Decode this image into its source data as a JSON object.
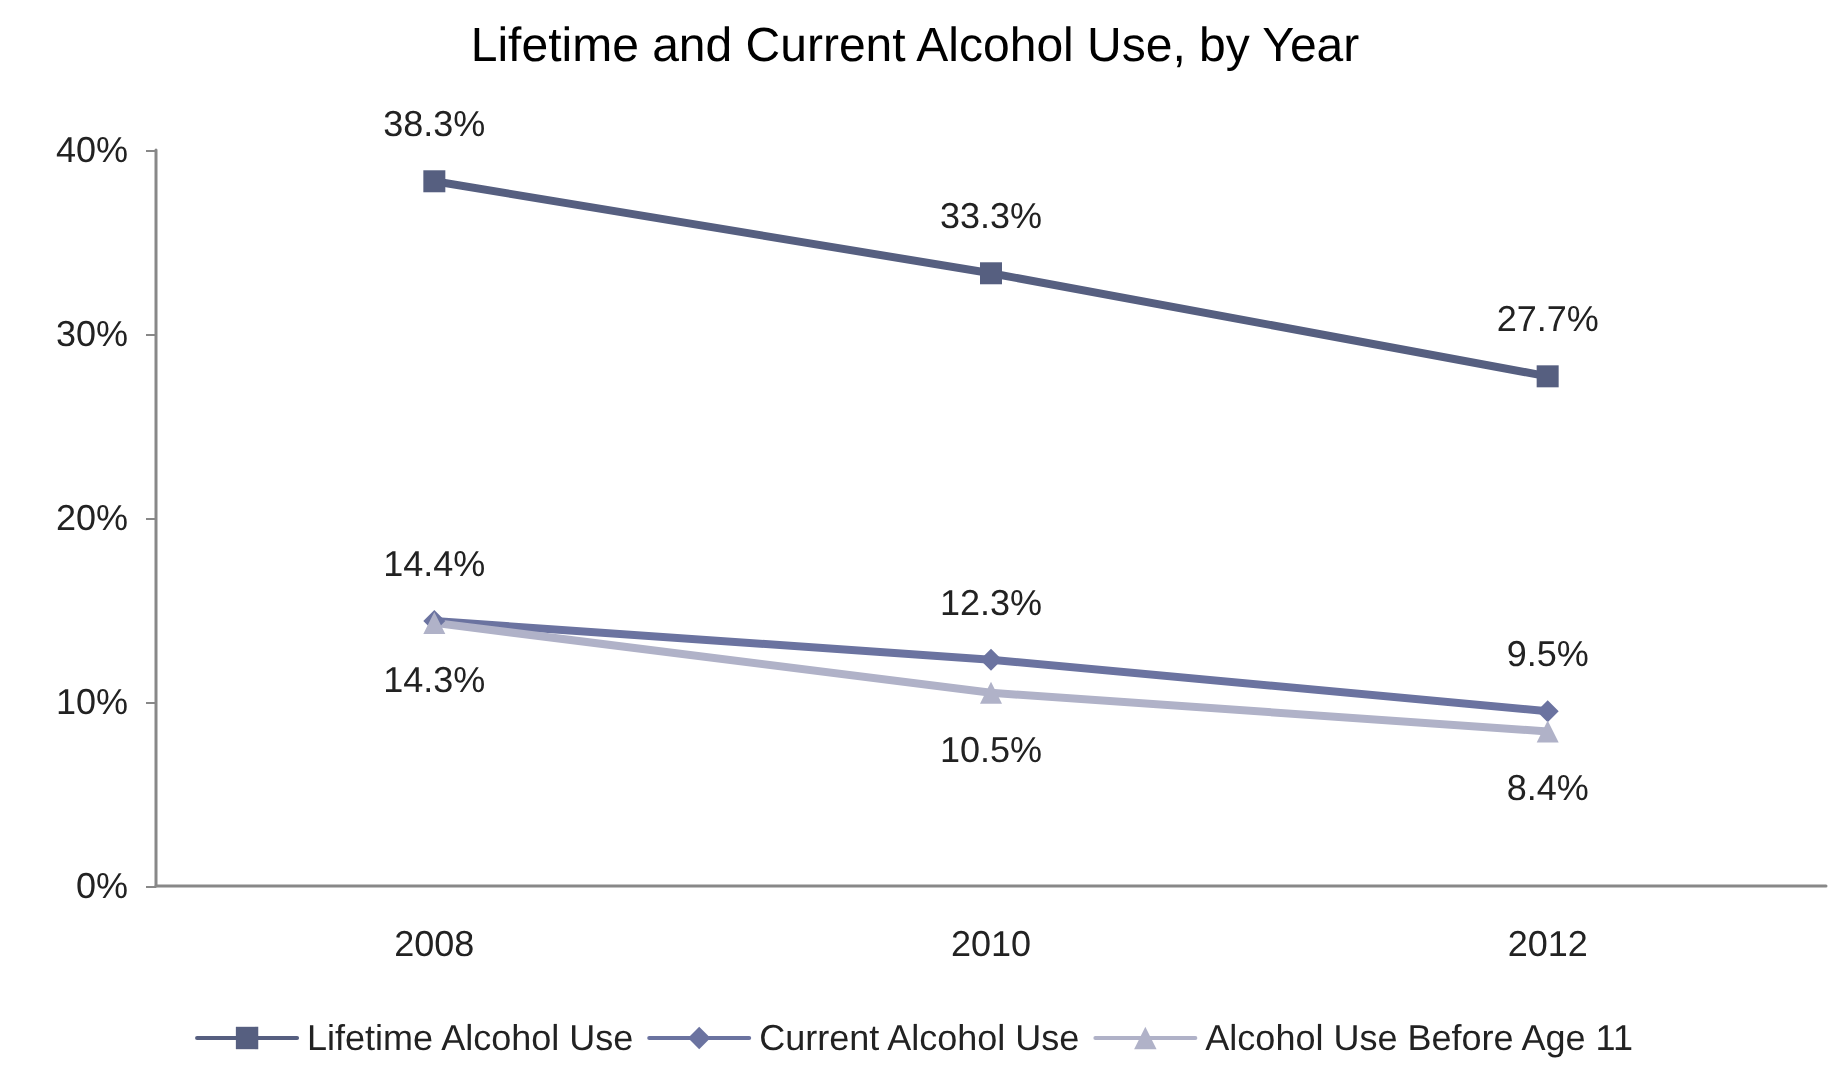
{
  "chart_data": {
    "type": "line",
    "title": "Lifetime and Current Alcohol Use, by Year",
    "categories": [
      "2008",
      "2010",
      "2012"
    ],
    "series": [
      {
        "name": "Lifetime Alcohol Use",
        "color": "#565f80",
        "values": [
          38.3,
          33.3,
          27.7
        ],
        "value_labels": [
          "38.3%",
          "33.3%",
          "27.7%"
        ],
        "marker": "square"
      },
      {
        "name": "Current Alcohol Use",
        "color": "#6b73a0",
        "values": [
          14.4,
          12.3,
          9.5
        ],
        "value_labels": [
          "14.4%",
          "12.3%",
          "9.5%"
        ],
        "marker": "diamond"
      },
      {
        "name": "Alcohol Use Before Age 11",
        "color": "#b0b2c8",
        "values": [
          14.3,
          10.5,
          8.4
        ],
        "value_labels": [
          "14.3%",
          "10.5%",
          "8.4%"
        ],
        "marker": "triangle"
      }
    ],
    "ylim": [
      0,
      40
    ],
    "yticks": [
      {
        "value": 0,
        "label": "0%"
      },
      {
        "value": 10,
        "label": "10%"
      },
      {
        "value": 20,
        "label": "20%"
      },
      {
        "value": 30,
        "label": "30%"
      },
      {
        "value": 40,
        "label": "40%"
      }
    ],
    "grid": false,
    "legend": "bottom",
    "line_style": "solid"
  }
}
